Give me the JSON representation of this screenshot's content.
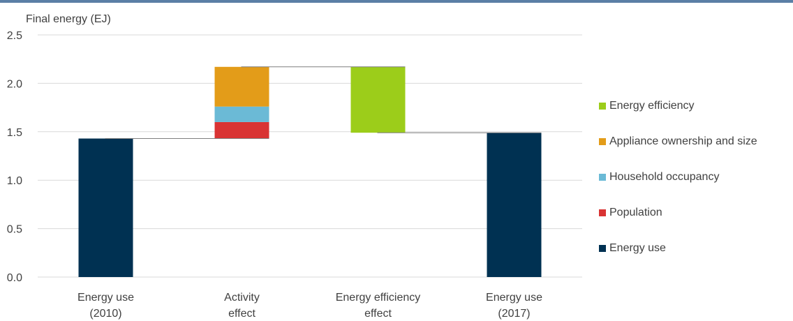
{
  "chart_data": {
    "type": "bar",
    "subtype": "stacked-waterfall",
    "y_axis_title": "Final energy (EJ)",
    "ylim": [
      0,
      2.5
    ],
    "yticks": [
      "0.0",
      "0.5",
      "1.0",
      "1.5",
      "2.0",
      "2.5"
    ],
    "grid": true,
    "legend_placement": "right",
    "categories": [
      [
        "Energy use",
        "(2010)"
      ],
      [
        "Activity",
        "effect"
      ],
      [
        "Energy efficiency",
        "effect"
      ],
      [
        "Energy use",
        "(2017)"
      ]
    ],
    "series": [
      {
        "name": "Energy efficiency",
        "color": "#9ccd1a"
      },
      {
        "name": "Appliance ownership and size",
        "color": "#e39c19"
      },
      {
        "name": "Household occupancy",
        "color": "#6bbad6"
      },
      {
        "name": "Population",
        "color": "#d93434"
      },
      {
        "name": "Energy use",
        "color": "#003152"
      }
    ],
    "bars": [
      {
        "category": 0,
        "segments": [
          {
            "series": "Energy use",
            "from": 0,
            "to": 1.43
          }
        ]
      },
      {
        "category": 1,
        "segments": [
          {
            "series": "Population",
            "from": 1.43,
            "to": 1.6
          },
          {
            "series": "Household occupancy",
            "from": 1.6,
            "to": 1.76
          },
          {
            "series": "Appliance ownership and size",
            "from": 1.76,
            "to": 2.17
          }
        ]
      },
      {
        "category": 2,
        "segments": [
          {
            "series": "Energy efficiency",
            "from": 1.49,
            "to": 2.17
          }
        ]
      },
      {
        "category": 3,
        "segments": [
          {
            "series": "Energy use",
            "from": 0,
            "to": 1.49
          }
        ]
      }
    ],
    "connectors": [
      {
        "from_category": 0,
        "to_category": 1,
        "value": 1.43
      },
      {
        "from_category": 1,
        "to_category": 2,
        "value": 2.17
      },
      {
        "from_category": 2,
        "to_category": 3,
        "value": 1.49
      }
    ]
  }
}
